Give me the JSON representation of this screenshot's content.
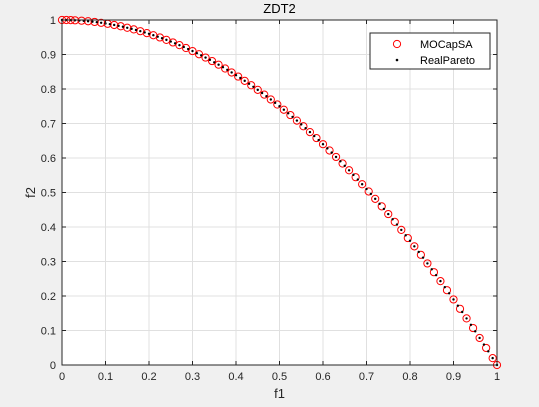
{
  "chart_data": {
    "type": "scatter",
    "title": "ZDT2",
    "xlabel": "f1",
    "ylabel": "f2",
    "xlim": [
      0,
      1
    ],
    "ylim": [
      0,
      1
    ],
    "xticks": [
      "0",
      "0.1",
      "0.2",
      "0.3",
      "0.4",
      "0.5",
      "0.6",
      "0.7",
      "0.8",
      "0.9",
      "1"
    ],
    "yticks": [
      "0",
      "0.1",
      "0.2",
      "0.3",
      "0.4",
      "0.5",
      "0.6",
      "0.7",
      "0.8",
      "0.9",
      "1"
    ],
    "grid": true,
    "legend_position": "top-right",
    "series": [
      {
        "name": "MOCapSA",
        "marker": "circle-open",
        "color": "#ff0000",
        "x": [
          0.0,
          0.01,
          0.02,
          0.03,
          0.045,
          0.06,
          0.075,
          0.09,
          0.105,
          0.12,
          0.135,
          0.15,
          0.165,
          0.18,
          0.195,
          0.21,
          0.225,
          0.24,
          0.255,
          0.27,
          0.285,
          0.3,
          0.315,
          0.33,
          0.345,
          0.36,
          0.375,
          0.39,
          0.405,
          0.42,
          0.435,
          0.45,
          0.465,
          0.48,
          0.495,
          0.51,
          0.525,
          0.54,
          0.555,
          0.57,
          0.585,
          0.6,
          0.615,
          0.63,
          0.645,
          0.66,
          0.675,
          0.69,
          0.705,
          0.72,
          0.735,
          0.75,
          0.765,
          0.78,
          0.795,
          0.81,
          0.825,
          0.84,
          0.855,
          0.87,
          0.885,
          0.9,
          0.915,
          0.93,
          0.945,
          0.96,
          0.975,
          0.99,
          1.0
        ],
        "y": [
          1.0,
          0.9999,
          0.9996,
          0.9991,
          0.998,
          0.9964,
          0.9944,
          0.9919,
          0.989,
          0.9856,
          0.9818,
          0.9775,
          0.9728,
          0.9676,
          0.962,
          0.9559,
          0.9494,
          0.9424,
          0.935,
          0.9271,
          0.9188,
          0.91,
          0.9008,
          0.8911,
          0.881,
          0.8704,
          0.8594,
          0.8479,
          0.836,
          0.8236,
          0.8108,
          0.7975,
          0.7838,
          0.7696,
          0.755,
          0.7399,
          0.7244,
          0.7084,
          0.692,
          0.6751,
          0.6578,
          0.64,
          0.6218,
          0.6031,
          0.584,
          0.5644,
          0.5444,
          0.5239,
          0.503,
          0.4816,
          0.4598,
          0.4375,
          0.4148,
          0.3916,
          0.368,
          0.3439,
          0.3194,
          0.2944,
          0.269,
          0.2431,
          0.2168,
          0.19,
          0.1628,
          0.1351,
          0.107,
          0.0784,
          0.0494,
          0.0199,
          0.0
        ]
      },
      {
        "name": "RealPareto",
        "marker": "dot",
        "color": "#000000",
        "x": [
          0.0,
          0.01,
          0.02,
          0.03,
          0.04,
          0.05,
          0.06,
          0.07,
          0.08,
          0.09,
          0.1,
          0.11,
          0.12,
          0.13,
          0.14,
          0.15,
          0.16,
          0.17,
          0.18,
          0.19,
          0.2,
          0.21,
          0.22,
          0.23,
          0.24,
          0.25,
          0.26,
          0.27,
          0.28,
          0.29,
          0.3,
          0.31,
          0.32,
          0.33,
          0.34,
          0.35,
          0.36,
          0.37,
          0.38,
          0.39,
          0.4,
          0.41,
          0.42,
          0.43,
          0.44,
          0.45,
          0.46,
          0.47,
          0.48,
          0.49,
          0.5,
          0.51,
          0.52,
          0.53,
          0.54,
          0.55,
          0.56,
          0.57,
          0.58,
          0.59,
          0.6,
          0.61,
          0.62,
          0.63,
          0.64,
          0.65,
          0.66,
          0.67,
          0.68,
          0.69,
          0.7,
          0.71,
          0.72,
          0.73,
          0.74,
          0.75,
          0.76,
          0.77,
          0.78,
          0.79,
          0.8,
          0.81,
          0.82,
          0.83,
          0.84,
          0.85,
          0.86,
          0.87,
          0.88,
          0.89,
          0.9,
          0.91,
          0.92,
          0.93,
          0.94,
          0.95,
          0.96,
          0.97,
          0.98,
          0.99,
          1.0
        ],
        "y": [
          1.0,
          0.9999,
          0.9996,
          0.9991,
          0.9984,
          0.9975,
          0.9964,
          0.9951,
          0.9936,
          0.9919,
          0.99,
          0.9879,
          0.9856,
          0.9831,
          0.9804,
          0.9775,
          0.9744,
          0.9711,
          0.9676,
          0.9639,
          0.96,
          0.9559,
          0.9516,
          0.9471,
          0.9424,
          0.9375,
          0.9324,
          0.9271,
          0.9216,
          0.9159,
          0.91,
          0.9039,
          0.8976,
          0.8911,
          0.8844,
          0.8775,
          0.8704,
          0.8631,
          0.8556,
          0.8479,
          0.84,
          0.8319,
          0.8236,
          0.8151,
          0.8064,
          0.7975,
          0.7884,
          0.7791,
          0.7696,
          0.7599,
          0.75,
          0.7399,
          0.7296,
          0.7191,
          0.7084,
          0.6975,
          0.6864,
          0.6751,
          0.6636,
          0.6519,
          0.64,
          0.6279,
          0.6156,
          0.6031,
          0.5904,
          0.5775,
          0.5644,
          0.5511,
          0.5376,
          0.5239,
          0.51,
          0.4959,
          0.4816,
          0.4671,
          0.4524,
          0.4375,
          0.4224,
          0.4071,
          0.3916,
          0.3759,
          0.36,
          0.3439,
          0.3276,
          0.3111,
          0.2944,
          0.2775,
          0.2604,
          0.2431,
          0.2256,
          0.2079,
          0.19,
          0.1719,
          0.1536,
          0.1351,
          0.1164,
          0.0975,
          0.0784,
          0.0591,
          0.0396,
          0.0199,
          0.0
        ]
      }
    ]
  }
}
